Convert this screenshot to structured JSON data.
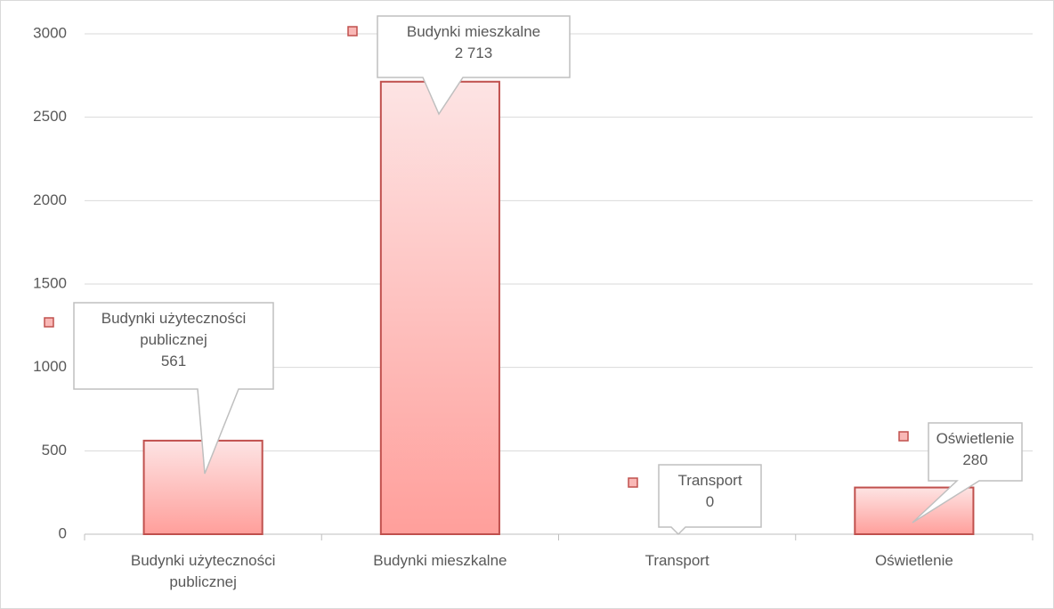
{
  "chart_data": {
    "type": "bar",
    "categories": [
      "Budynki użyteczności publicznej",
      "Budynki mieszkalne",
      "Transport",
      "Oświetlenie"
    ],
    "values": [
      561,
      2713,
      0,
      280
    ],
    "value_labels": [
      "561",
      "2 713",
      "0",
      "280"
    ],
    "color": "#c0504d",
    "ylim": [
      0,
      3000
    ],
    "yticks": [
      0,
      500,
      1000,
      1500,
      2000,
      2500,
      3000
    ],
    "grid": true
  }
}
